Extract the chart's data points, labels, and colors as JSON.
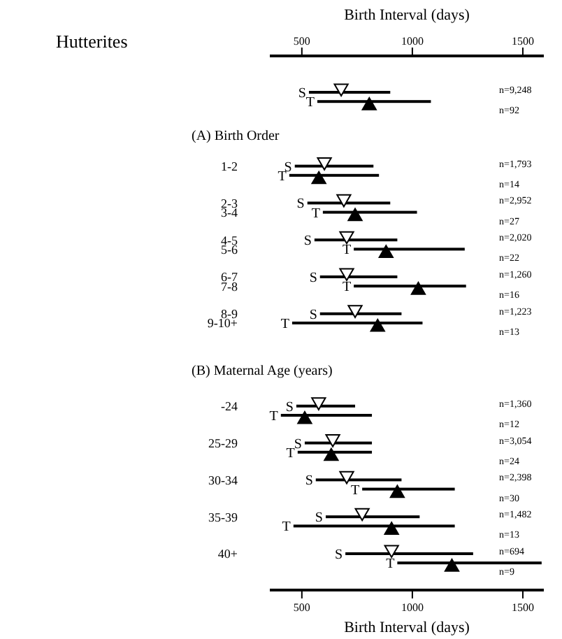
{
  "chart_data": {
    "type": "bar",
    "orientation": "horizontal",
    "title": "Hutterites",
    "x2label": "Birth Interval (days)",
    "xlabel": "Birth Interval (days)",
    "categories": [
      null,
      null,
      null,
      null,
      null,
      null,
      null,
      null,
      "1-2",
      null,
      null,
      null,
      "2-3",
      "3-4",
      null,
      null,
      "4-5",
      "5-6",
      null,
      null,
      "6-7",
      "7-8",
      null,
      null,
      "8-9",
      "9-10+",
      null,
      null,
      null,
      null,
      null,
      null,
      null,
      null,
      "-24",
      null,
      null,
      null,
      "25-29",
      null,
      null,
      null,
      "30-34",
      null,
      null,
      null,
      "35-39",
      null,
      null,
      null,
      "40+",
      null
    ],
    "series": [
      {
        "type": "bar",
        "color": "#000000",
        "base": [
          532,
          570,
          null,
          null,
          null,
          null,
          null,
          null,
          468,
          443,
          null,
          null,
          525,
          595,
          null,
          null,
          557,
          735,
          null,
          null,
          582,
          735,
          null,
          null,
          582,
          456,
          null,
          null,
          null,
          null,
          null,
          null,
          null,
          null,
          475,
          405,
          null,
          null,
          513,
          481,
          null,
          null,
          563,
          773,
          null,
          null,
          608,
          462,
          null,
          null,
          697,
          932
        ],
        "values": [
          368,
          514,
          null,
          null,
          null,
          null,
          null,
          null,
          356,
          406,
          null,
          null,
          375,
          426,
          null,
          null,
          375,
          502,
          null,
          null,
          350,
          508,
          null,
          null,
          369,
          590,
          null,
          null,
          null,
          null,
          null,
          null,
          null,
          null,
          266,
          412,
          null,
          null,
          304,
          336,
          null,
          null,
          388,
          419,
          null,
          null,
          425,
          730,
          null,
          null,
          578,
          653
        ]
      },
      {
        "type": "scatter",
        "marker": "triangle",
        "color": "#ffffff",
        "values": [
          678,
          null,
          null,
          null,
          null,
          null,
          null,
          null,
          602,
          null,
          null,
          null,
          690,
          null,
          null,
          null,
          703,
          null,
          null,
          null,
          703,
          null,
          null,
          null,
          741,
          null,
          null,
          null,
          null,
          null,
          null,
          null,
          null,
          null,
          576,
          null,
          null,
          null,
          640,
          null,
          null,
          null,
          703,
          null,
          null,
          null,
          773,
          null,
          null,
          null,
          906,
          null
        ]
      },
      {
        "type": "scatter",
        "marker": "triangle",
        "color": "#000000",
        "values": [
          null,
          805,
          null,
          null,
          null,
          null,
          null,
          null,
          null,
          577,
          null,
          null,
          null,
          741,
          null,
          null,
          null,
          881,
          null,
          null,
          null,
          1027,
          null,
          null,
          null,
          843,
          null,
          null,
          null,
          null,
          null,
          null,
          null,
          null,
          null,
          513,
          null,
          null,
          null,
          633,
          null,
          null,
          null,
          932,
          null,
          null,
          null,
          906,
          null,
          null,
          null,
          1179
        ]
      }
    ],
    "xlim": [
      355,
      1595
    ],
    "xticks": [
      500,
      1000,
      1500
    ],
    "x2lim": [
      355,
      1595
    ],
    "x2ticks": [
      500,
      1000,
      1500
    ],
    "annotations": [
      "S",
      "T",
      "S",
      "T",
      "S",
      "T",
      "S",
      "T",
      "S",
      "T",
      "S",
      "T",
      "S",
      "T",
      "S",
      "T",
      "S",
      "T",
      "S",
      "T",
      "S",
      "T",
      "(A) Birth Order",
      "(B) Maternal Age (years)",
      "n=9,248",
      "n=92",
      "n=1,793",
      "n=14",
      "n=2,952",
      "n=27",
      "n=2,020",
      "n=22",
      "n=1,260",
      "n=16",
      "n=1,223",
      "n=13",
      "n=1,360",
      "n=12",
      "n=3,054",
      "n=24",
      "n=2,398",
      "n=30",
      "n=1,482",
      "n=13",
      "n=694",
      "n=9"
    ]
  }
}
